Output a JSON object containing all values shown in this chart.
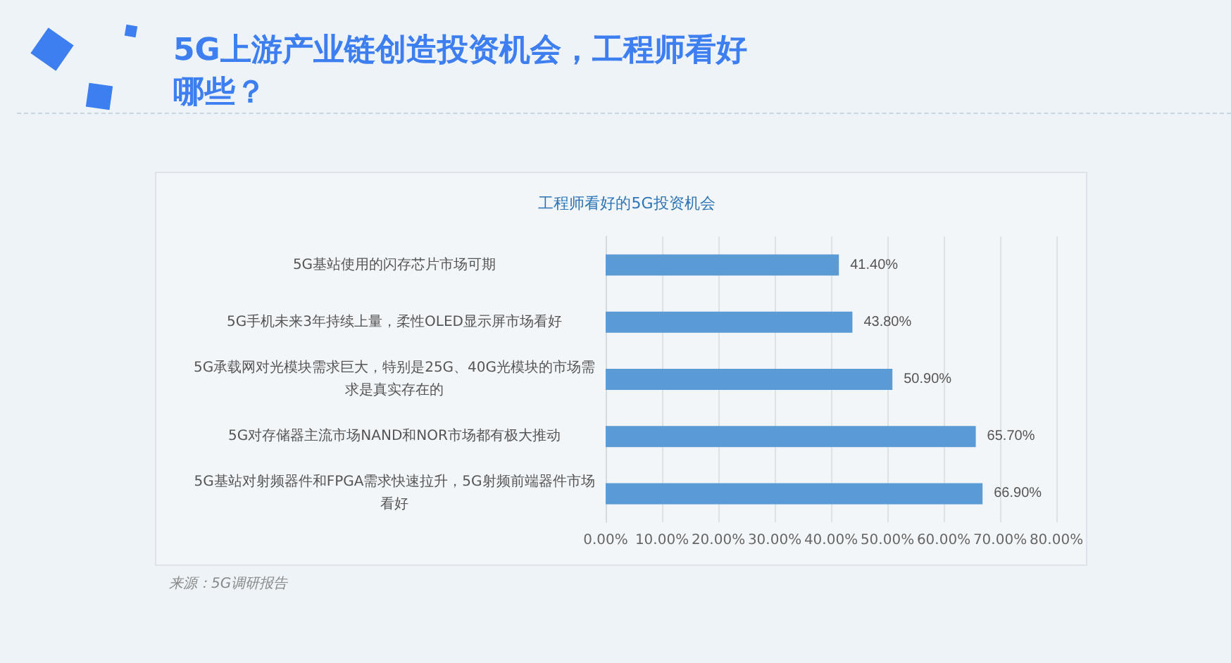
{
  "chart_data": {
    "type": "bar",
    "orientation": "horizontal",
    "title": "5G上游产业链创造投资机会，工程师看好哪些？",
    "subtitle": "工程师看好的5G投资机会",
    "categories": [
      "5G基站使用的闪存芯片市场可期",
      "5G手机未来3年持续上量，柔性OLED显示屏市场看好",
      "5G承载网对光模块需求巨大，特别是25G、40G光模块的市场需求是真实存在的",
      "5G对存储器主流市场NAND和NOR市场都有极大推动",
      "5G基站对射频器件和FPGA需求快速拉升，5G射频前端器件市场看好"
    ],
    "values": [
      41.4,
      43.8,
      50.9,
      65.7,
      66.9
    ],
    "value_labels": [
      "41.40%",
      "43.80%",
      "50.90%",
      "65.70%",
      "66.90%"
    ],
    "color": "#5b9bd5",
    "xlim": [
      0,
      80
    ],
    "xticks": [
      {
        "value": 0,
        "label": "0.00%"
      },
      {
        "value": 10,
        "label": "10.00%"
      },
      {
        "value": 20,
        "label": "20.00%"
      },
      {
        "value": 30,
        "label": "30.00%"
      },
      {
        "value": 40,
        "label": "40.00%"
      },
      {
        "value": 50,
        "label": "50.00%"
      },
      {
        "value": 60,
        "label": "60.00%"
      },
      {
        "value": 70,
        "label": "70.00%"
      },
      {
        "value": 80,
        "label": "80.00%"
      }
    ],
    "grid": "x",
    "annotations": [
      "来源：5G调研报告"
    ]
  }
}
